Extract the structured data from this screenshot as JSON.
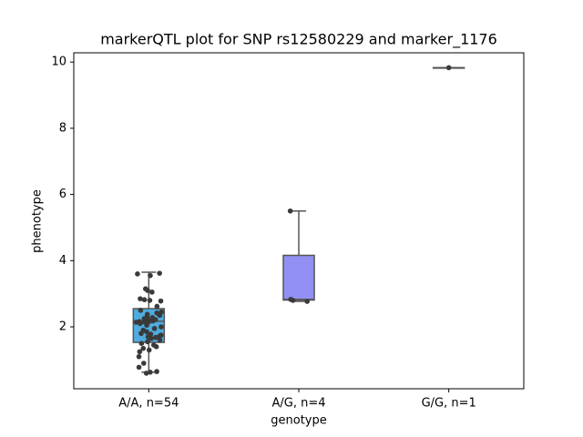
{
  "chart_data": {
    "type": "box",
    "title": "markerQTL plot for SNP rs12580229 and marker_1176",
    "x_label": "genotype",
    "y_label": "phenotype",
    "categories": [
      "A/A, n=54",
      "A/G, n=4",
      "G/G, n=1"
    ],
    "colors": [
      "#4eacde",
      "#9290f2",
      "#8ecf8e"
    ],
    "boxes": [
      {
        "whislo": 0.63,
        "q1": 1.53,
        "median": 2.17,
        "q3": 2.55,
        "whishi": 3.65
      },
      {
        "whislo": 2.77,
        "q1": 2.81,
        "median": 2.83,
        "q3": 4.16,
        "whishi": 5.5
      },
      {
        "whislo": 9.83,
        "q1": 9.83,
        "median": 9.83,
        "q3": 9.83,
        "whishi": 9.83
      }
    ],
    "points": [
      [
        3.62,
        3.6,
        3.55,
        3.15,
        3.1,
        3.05,
        2.85,
        2.82,
        2.8,
        2.78,
        2.62,
        2.5,
        2.45,
        2.42,
        2.38,
        2.35,
        2.3,
        2.28,
        2.25,
        2.22,
        2.2,
        2.18,
        2.17,
        2.16,
        2.15,
        2.15,
        2.14,
        2.1,
        2.05,
        2.0,
        1.95,
        1.9,
        1.85,
        1.8,
        1.78,
        1.75,
        1.72,
        1.7,
        1.68,
        1.65,
        1.6,
        1.55,
        1.5,
        1.45,
        1.4,
        1.35,
        1.3,
        1.25,
        1.1,
        0.9,
        0.78,
        0.65,
        0.63,
        0.6
      ],
      [
        5.5,
        2.83,
        2.8,
        2.77
      ],
      [
        9.83
      ]
    ],
    "ylim": [
      0.13,
      10.28
    ],
    "yticks": [
      2,
      4,
      6,
      8,
      10
    ]
  }
}
